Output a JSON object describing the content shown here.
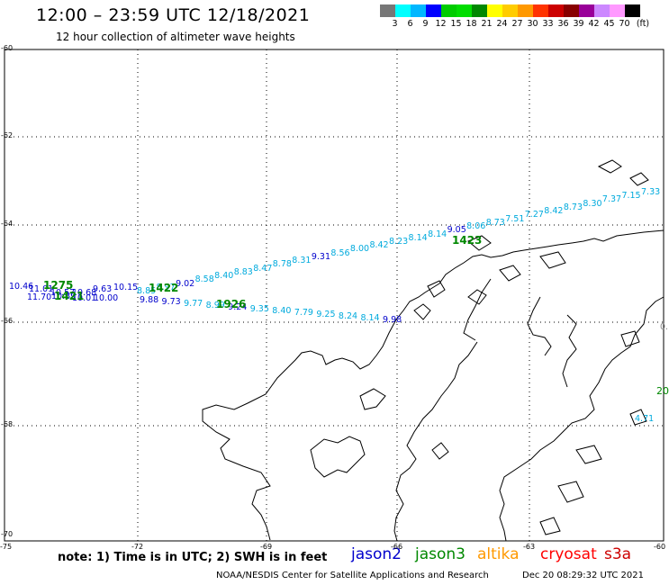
{
  "header": {
    "title": "12:00 – 23:59 UTC 12/18/2021",
    "subtitle": "12 hour collection of altimeter wave heights"
  },
  "legend": {
    "colors": [
      "#777777",
      "#00ffff",
      "#00b7ff",
      "#0000ff",
      "#00cc00",
      "#00dd00",
      "#008800",
      "#ffff00",
      "#ffcc00",
      "#ff9900",
      "#ff3300",
      "#cc0000",
      "#880000",
      "#990099",
      "#cc88ff",
      "#ff99ff",
      "#000000"
    ],
    "labels": [
      "3",
      "6",
      "9",
      "12",
      "15",
      "18",
      "21",
      "24",
      "27",
      "30",
      "33",
      "36",
      "39",
      "42",
      "45",
      "70"
    ],
    "unit": "(ft)"
  },
  "axes": {
    "lat_labels": [
      "-60",
      "-62",
      "-64",
      "-66",
      "-68",
      "-70"
    ],
    "lon_labels": [
      "-75",
      "-72",
      "-69",
      "-66",
      "-63",
      "-60"
    ]
  },
  "tracks": {
    "jason3_top": {
      "values": [
        "8.85",
        "8.97",
        "9.02",
        "8.58",
        "8.40",
        "8.83",
        "8.47",
        "8.78",
        "8.31",
        "9.31",
        "8.56",
        "8.00",
        "8.42",
        "8.23",
        "8.14",
        "8.14",
        "9.05",
        "8.06",
        "8.73",
        "7.51",
        "7.27",
        "8.42",
        "8.73",
        "8.30",
        "7.37",
        "7.15",
        "7.33"
      ]
    },
    "jason3_bottom": {
      "values": [
        "9.88",
        "9.73",
        "9.77",
        "8.99",
        "9.24",
        "9.35",
        "8.40",
        "7.79",
        "9.25",
        "8.24",
        "8.14",
        "9.98"
      ]
    },
    "jason2_left": {
      "values": [
        "10.46",
        "11.01",
        "10.57",
        "10.68",
        "9.63",
        "10.15",
        "11.70",
        "10.89",
        "10.01",
        "10.00"
      ]
    },
    "pass_times": [
      "1275",
      "1421",
      "1422",
      "1926",
      "1423"
    ],
    "edge_labels": [
      "0.",
      "20",
      "4.71"
    ]
  },
  "footer": {
    "note": "note: 1) Time is in UTC; 2) SWH is in feet",
    "satellites": [
      "jason2",
      "jason3",
      "altika",
      "cryosat",
      "s3a"
    ],
    "sat_colors": [
      "#0000cc",
      "#008800",
      "#ff9900",
      "#ff0000",
      "#cc0000"
    ],
    "credit": "NOAA/NESDIS Center for Satellite Applications and Research",
    "timestamp": "Dec 20 08:29:32 UTC 2021"
  }
}
